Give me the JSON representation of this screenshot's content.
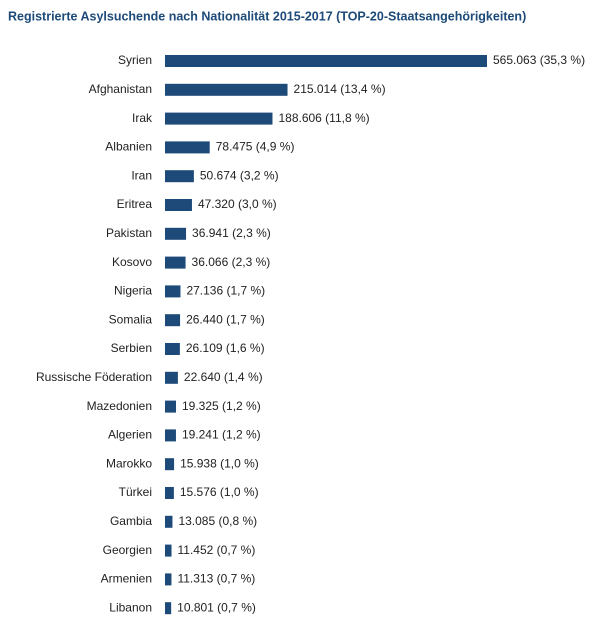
{
  "chart_data": {
    "type": "bar",
    "orientation": "horizontal",
    "title": "Registrierte Asylsuchende nach Nationalität 2015-2017 (TOP-20-Staatsangehörigkeiten)",
    "color": "#1d4a78",
    "categories": [
      "Syrien",
      "Afghanistan",
      "Irak",
      "Albanien",
      "Iran",
      "Eritrea",
      "Pakistan",
      "Kosovo",
      "Nigeria",
      "Somalia",
      "Serbien",
      "Russische Föderation",
      "Mazedonien",
      "Algerien",
      "Marokko",
      "Türkei",
      "Gambia",
      "Georgien",
      "Armenien",
      "Libanon"
    ],
    "values": [
      565063,
      215014,
      188606,
      78475,
      50674,
      47320,
      36941,
      36066,
      27136,
      26440,
      26109,
      22640,
      19325,
      19241,
      15938,
      15576,
      13085,
      11452,
      11313,
      10801
    ],
    "value_labels": [
      "565.063 (35,3 %)",
      "215.014 (13,4 %)",
      "188.606 (11,8 %)",
      "78.475 (4,9 %)",
      "50.674 (3,2 %)",
      "47.320 (3,0 %)",
      "36.941 (2,3 %)",
      "36.066 (2,3 %)",
      "27.136 (1,7 %)",
      "26.440 (1,7 %)",
      "26.109 (1,6 %)",
      "22.640 (1,4 %)",
      "19.325 (1,2 %)",
      "19.241 (1,2 %)",
      "15.938 (1,0 %)",
      "15.576 (1,0 %)",
      "13.085 (0,8 %)",
      "11.452 (0,7 %)",
      "11.313 (0,7 %)",
      "10.801 (0,7 %)"
    ]
  }
}
